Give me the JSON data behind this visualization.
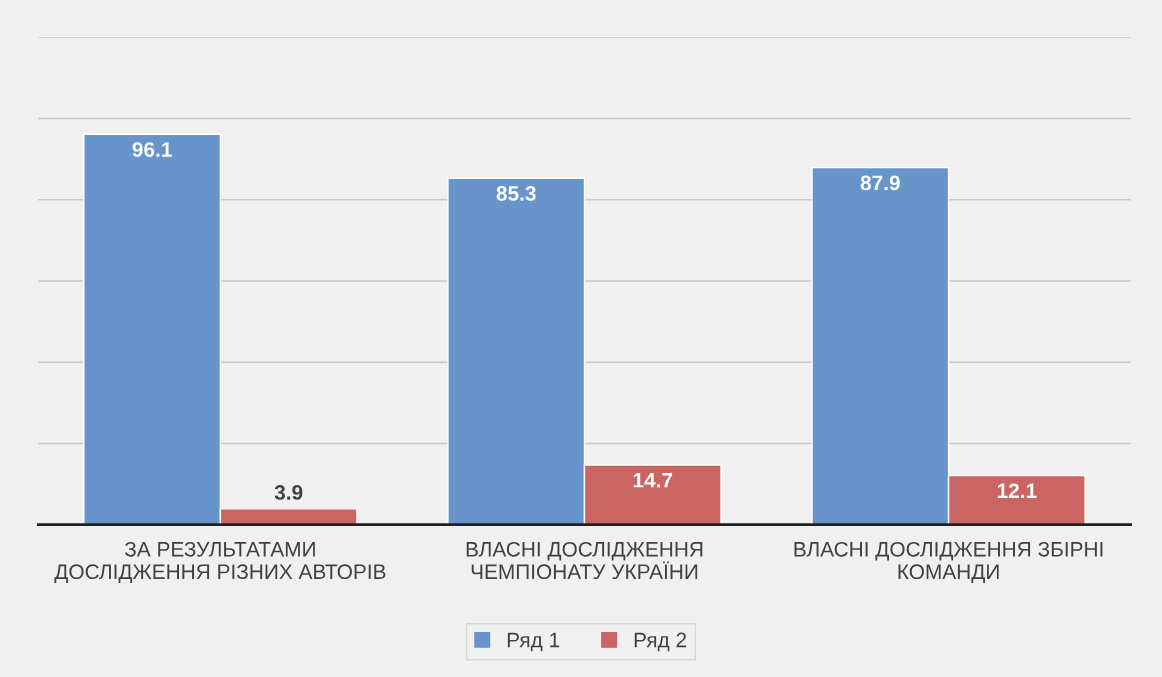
{
  "chart_data": {
    "type": "bar",
    "categories": [
      "ЗА РЕЗУЛЬТАТАМИ ДОСЛІДЖЕННЯ РІЗНИХ АВТОРІВ",
      "ВЛАСНІ ДОСЛІДЖЕННЯ ЧЕМПІОНАТУ УКРАЇНИ",
      "ВЛАСНІ ДОСЛІДЖЕННЯ ЗБІРНІ КОМАНДИ"
    ],
    "series": [
      {
        "name": "Ряд 1",
        "color": "#6795cb",
        "values": [
          96.1,
          85.3,
          87.9
        ]
      },
      {
        "name": "Ряд 2",
        "color": "#cb6563",
        "values": [
          3.9,
          14.7,
          12.1
        ]
      }
    ],
    "ylim": [
      0,
      120
    ],
    "yticks": [
      {
        "value": 0,
        "label": null
      },
      {
        "value": 20,
        "label": null
      },
      {
        "value": 40,
        "label": null
      },
      {
        "value": 60,
        "label": null
      },
      {
        "value": 80,
        "label": null
      },
      {
        "value": 100,
        "label": null
      },
      {
        "value": 120,
        "label": null
      }
    ],
    "tick_labels": "x",
    "grid": "y",
    "legend": "bottom",
    "data_labels": true
  }
}
